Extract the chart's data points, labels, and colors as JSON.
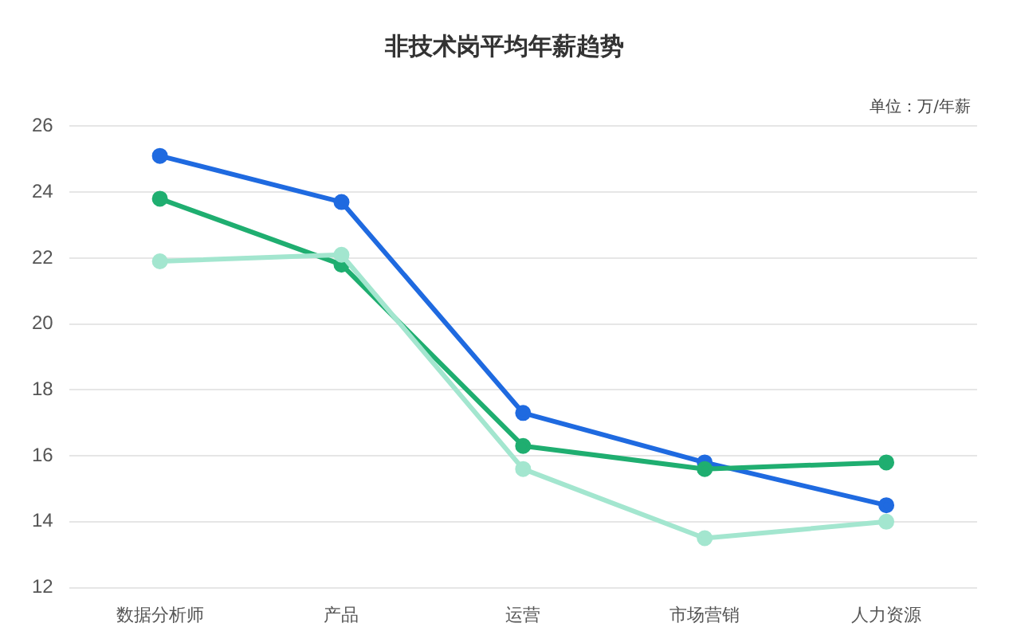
{
  "chart_data": {
    "type": "line",
    "title": "非技术岗平均年薪趋势",
    "annotations": [
      "单位：万/年薪"
    ],
    "categories": [
      "数据分析师",
      "产品",
      "运营",
      "市场营销",
      "人力资源"
    ],
    "series": [
      {
        "color": "#1f6ae0",
        "values": [
          25.1,
          23.7,
          17.3,
          15.8,
          14.5
        ]
      },
      {
        "color": "#1fae70",
        "values": [
          23.8,
          21.8,
          16.3,
          15.6,
          15.8
        ]
      },
      {
        "color": "#a3e6cf",
        "values": [
          21.9,
          22.1,
          15.6,
          13.5,
          14.0
        ]
      }
    ],
    "ylim": [
      12,
      26
    ],
    "yticks": [
      12,
      14,
      16,
      18,
      20,
      22,
      24,
      26
    ],
    "grid": "y",
    "legend": false,
    "marker": "circle",
    "line_style": "solid"
  }
}
